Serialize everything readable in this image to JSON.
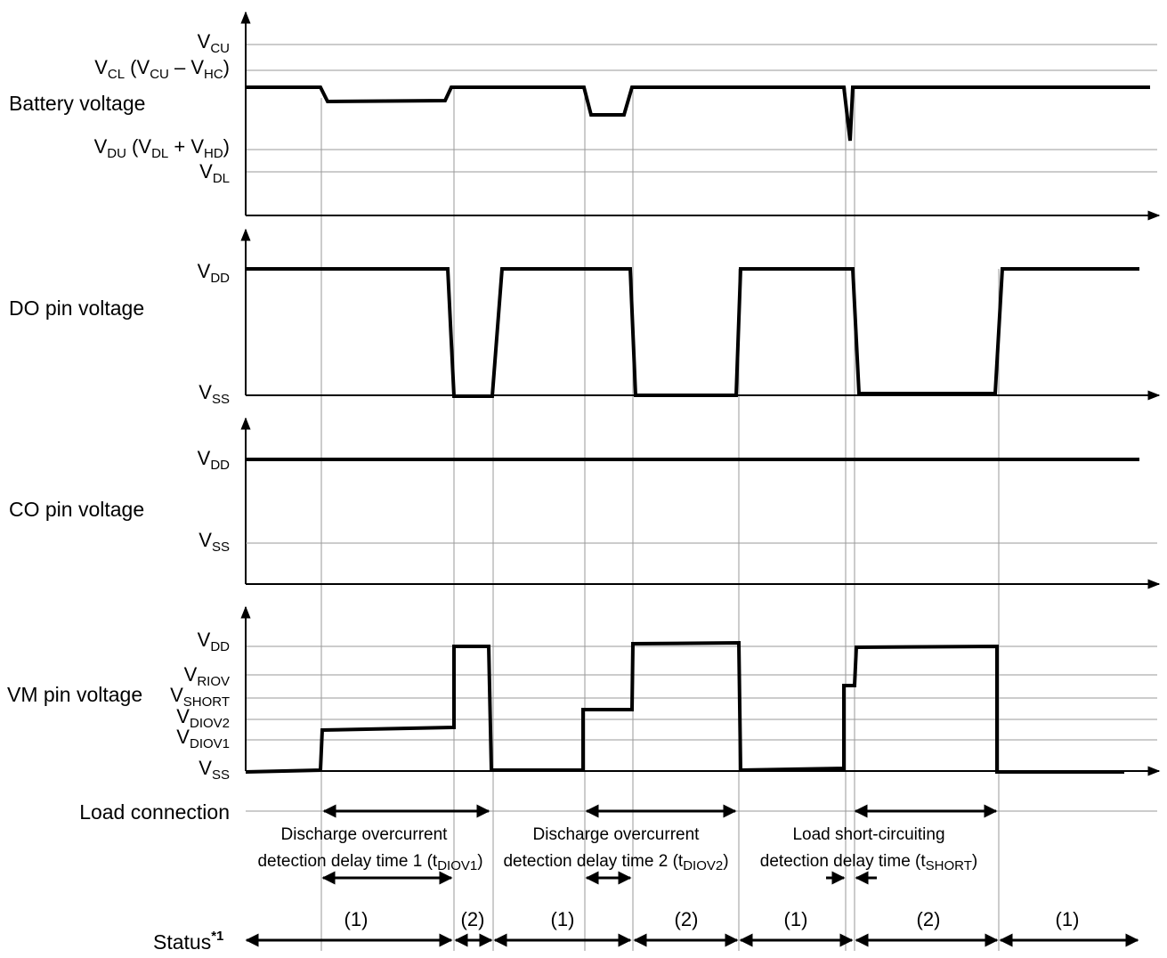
{
  "signals": {
    "battery": {
      "label": "Battery voltage",
      "levels": {
        "vcu": {
          "main": "V",
          "sub": "CU"
        },
        "vcl": {
          "p1": "V",
          "s1": "CL",
          "p2": " (V",
          "s2": "CU",
          "p3": " – V",
          "s3": "HC",
          "p4": ")"
        },
        "vdu": {
          "p1": "V",
          "s1": "DU",
          "p2": " (V",
          "s2": "DL",
          "p3": " + V",
          "s3": "HD",
          "p4": ")"
        },
        "vdl": {
          "main": "V",
          "sub": "DL"
        }
      }
    },
    "do_pin": {
      "label": "DO pin voltage",
      "levels": {
        "vdd": {
          "main": "V",
          "sub": "DD"
        },
        "vss": {
          "main": "V",
          "sub": "SS"
        }
      }
    },
    "co_pin": {
      "label": "CO pin voltage",
      "levels": {
        "vdd": {
          "main": "V",
          "sub": "DD"
        },
        "vss": {
          "main": "V",
          "sub": "SS"
        }
      }
    },
    "vm_pin": {
      "label": "VM pin voltage",
      "levels": {
        "vdd": {
          "main": "V",
          "sub": "DD"
        },
        "vriov": {
          "main": "V",
          "sub": "RIOV"
        },
        "vshort": {
          "main": "V",
          "sub": "SHORT"
        },
        "vdiov2": {
          "main": "V",
          "sub": "DIOV2"
        },
        "vdiov1": {
          "main": "V",
          "sub": "DIOV1"
        },
        "vss": {
          "main": "V",
          "sub": "SS"
        }
      }
    }
  },
  "load_connection": {
    "label": "Load connection"
  },
  "delay_times": [
    {
      "line1": "Discharge overcurrent",
      "line2_pre": "detection delay time 1 (t",
      "line2_sub": "DIOV1",
      "line2_post": ")"
    },
    {
      "line1": "Discharge overcurrent",
      "line2_pre": "detection delay time 2 (t",
      "line2_sub": "DIOV2",
      "line2_post": ")"
    },
    {
      "line1": "Load short-circuiting",
      "line2_pre": "detection delay time (t",
      "line2_sub": "SHORT",
      "line2_post": ")"
    }
  ],
  "status": {
    "label": "Status",
    "footnote": "*1",
    "states": [
      "(1)",
      "(2)",
      "(1)",
      "(2)",
      "(1)",
      "(2)",
      "(1)"
    ]
  },
  "colors": {
    "line": "#000000",
    "grid": "#9a9a9a"
  }
}
